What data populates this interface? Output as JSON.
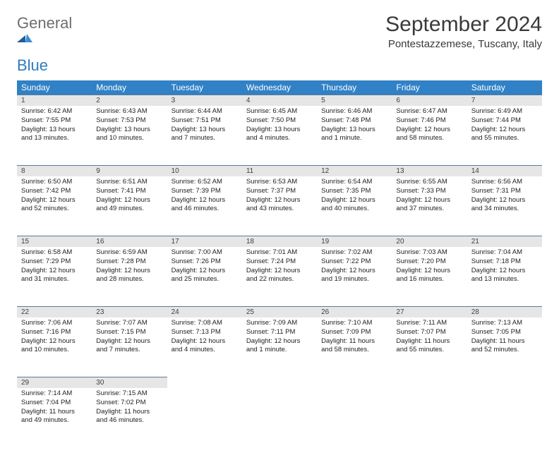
{
  "logo": {
    "general": "General",
    "blue": "Blue"
  },
  "title": "September 2024",
  "location": "Pontestazzemese, Tuscany, Italy",
  "colors": {
    "header_bg": "#3081c6",
    "daynum_bg": "#e6e6e6",
    "row_border": "#5a7a99",
    "logo_gray": "#6e6e6e",
    "logo_blue": "#2f7bbf"
  },
  "weekdays": [
    "Sunday",
    "Monday",
    "Tuesday",
    "Wednesday",
    "Thursday",
    "Friday",
    "Saturday"
  ],
  "weeks": [
    [
      {
        "n": "1",
        "sr": "6:42 AM",
        "ss": "7:55 PM",
        "dl": "13 hours and 13 minutes."
      },
      {
        "n": "2",
        "sr": "6:43 AM",
        "ss": "7:53 PM",
        "dl": "13 hours and 10 minutes."
      },
      {
        "n": "3",
        "sr": "6:44 AM",
        "ss": "7:51 PM",
        "dl": "13 hours and 7 minutes."
      },
      {
        "n": "4",
        "sr": "6:45 AM",
        "ss": "7:50 PM",
        "dl": "13 hours and 4 minutes."
      },
      {
        "n": "5",
        "sr": "6:46 AM",
        "ss": "7:48 PM",
        "dl": "13 hours and 1 minute."
      },
      {
        "n": "6",
        "sr": "6:47 AM",
        "ss": "7:46 PM",
        "dl": "12 hours and 58 minutes."
      },
      {
        "n": "7",
        "sr": "6:49 AM",
        "ss": "7:44 PM",
        "dl": "12 hours and 55 minutes."
      }
    ],
    [
      {
        "n": "8",
        "sr": "6:50 AM",
        "ss": "7:42 PM",
        "dl": "12 hours and 52 minutes."
      },
      {
        "n": "9",
        "sr": "6:51 AM",
        "ss": "7:41 PM",
        "dl": "12 hours and 49 minutes."
      },
      {
        "n": "10",
        "sr": "6:52 AM",
        "ss": "7:39 PM",
        "dl": "12 hours and 46 minutes."
      },
      {
        "n": "11",
        "sr": "6:53 AM",
        "ss": "7:37 PM",
        "dl": "12 hours and 43 minutes."
      },
      {
        "n": "12",
        "sr": "6:54 AM",
        "ss": "7:35 PM",
        "dl": "12 hours and 40 minutes."
      },
      {
        "n": "13",
        "sr": "6:55 AM",
        "ss": "7:33 PM",
        "dl": "12 hours and 37 minutes."
      },
      {
        "n": "14",
        "sr": "6:56 AM",
        "ss": "7:31 PM",
        "dl": "12 hours and 34 minutes."
      }
    ],
    [
      {
        "n": "15",
        "sr": "6:58 AM",
        "ss": "7:29 PM",
        "dl": "12 hours and 31 minutes."
      },
      {
        "n": "16",
        "sr": "6:59 AM",
        "ss": "7:28 PM",
        "dl": "12 hours and 28 minutes."
      },
      {
        "n": "17",
        "sr": "7:00 AM",
        "ss": "7:26 PM",
        "dl": "12 hours and 25 minutes."
      },
      {
        "n": "18",
        "sr": "7:01 AM",
        "ss": "7:24 PM",
        "dl": "12 hours and 22 minutes."
      },
      {
        "n": "19",
        "sr": "7:02 AM",
        "ss": "7:22 PM",
        "dl": "12 hours and 19 minutes."
      },
      {
        "n": "20",
        "sr": "7:03 AM",
        "ss": "7:20 PM",
        "dl": "12 hours and 16 minutes."
      },
      {
        "n": "21",
        "sr": "7:04 AM",
        "ss": "7:18 PM",
        "dl": "12 hours and 13 minutes."
      }
    ],
    [
      {
        "n": "22",
        "sr": "7:06 AM",
        "ss": "7:16 PM",
        "dl": "12 hours and 10 minutes."
      },
      {
        "n": "23",
        "sr": "7:07 AM",
        "ss": "7:15 PM",
        "dl": "12 hours and 7 minutes."
      },
      {
        "n": "24",
        "sr": "7:08 AM",
        "ss": "7:13 PM",
        "dl": "12 hours and 4 minutes."
      },
      {
        "n": "25",
        "sr": "7:09 AM",
        "ss": "7:11 PM",
        "dl": "12 hours and 1 minute."
      },
      {
        "n": "26",
        "sr": "7:10 AM",
        "ss": "7:09 PM",
        "dl": "11 hours and 58 minutes."
      },
      {
        "n": "27",
        "sr": "7:11 AM",
        "ss": "7:07 PM",
        "dl": "11 hours and 55 minutes."
      },
      {
        "n": "28",
        "sr": "7:13 AM",
        "ss": "7:05 PM",
        "dl": "11 hours and 52 minutes."
      }
    ],
    [
      {
        "n": "29",
        "sr": "7:14 AM",
        "ss": "7:04 PM",
        "dl": "11 hours and 49 minutes."
      },
      {
        "n": "30",
        "sr": "7:15 AM",
        "ss": "7:02 PM",
        "dl": "11 hours and 46 minutes."
      },
      null,
      null,
      null,
      null,
      null
    ]
  ],
  "labels": {
    "sunrise": "Sunrise: ",
    "sunset": "Sunset: ",
    "daylight": "Daylight: "
  }
}
